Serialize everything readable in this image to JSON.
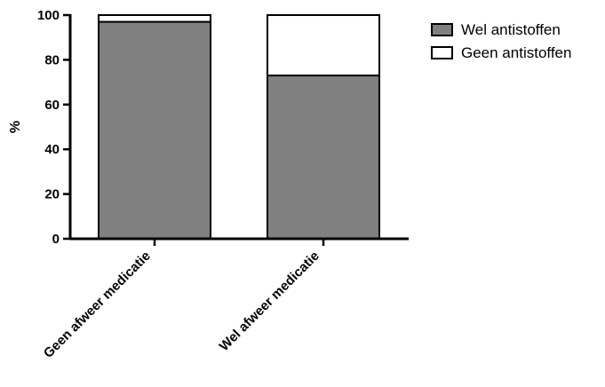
{
  "chart_data": {
    "type": "bar",
    "stacked": true,
    "percent": true,
    "categories": [
      "Geen afweer medicatie",
      "Wel afweer medicatie"
    ],
    "series": [
      {
        "name": "Wel antistoffen",
        "values": [
          97,
          73
        ],
        "color": "#808080"
      },
      {
        "name": "Geen antistoffen",
        "values": [
          3,
          27
        ],
        "color": "#ffffff"
      }
    ],
    "ylabel": "%",
    "xlabel": "",
    "ylim": [
      0,
      100
    ],
    "yticks": [
      0,
      20,
      40,
      60,
      80,
      100
    ],
    "grid": false,
    "legend_position": "top-right"
  }
}
